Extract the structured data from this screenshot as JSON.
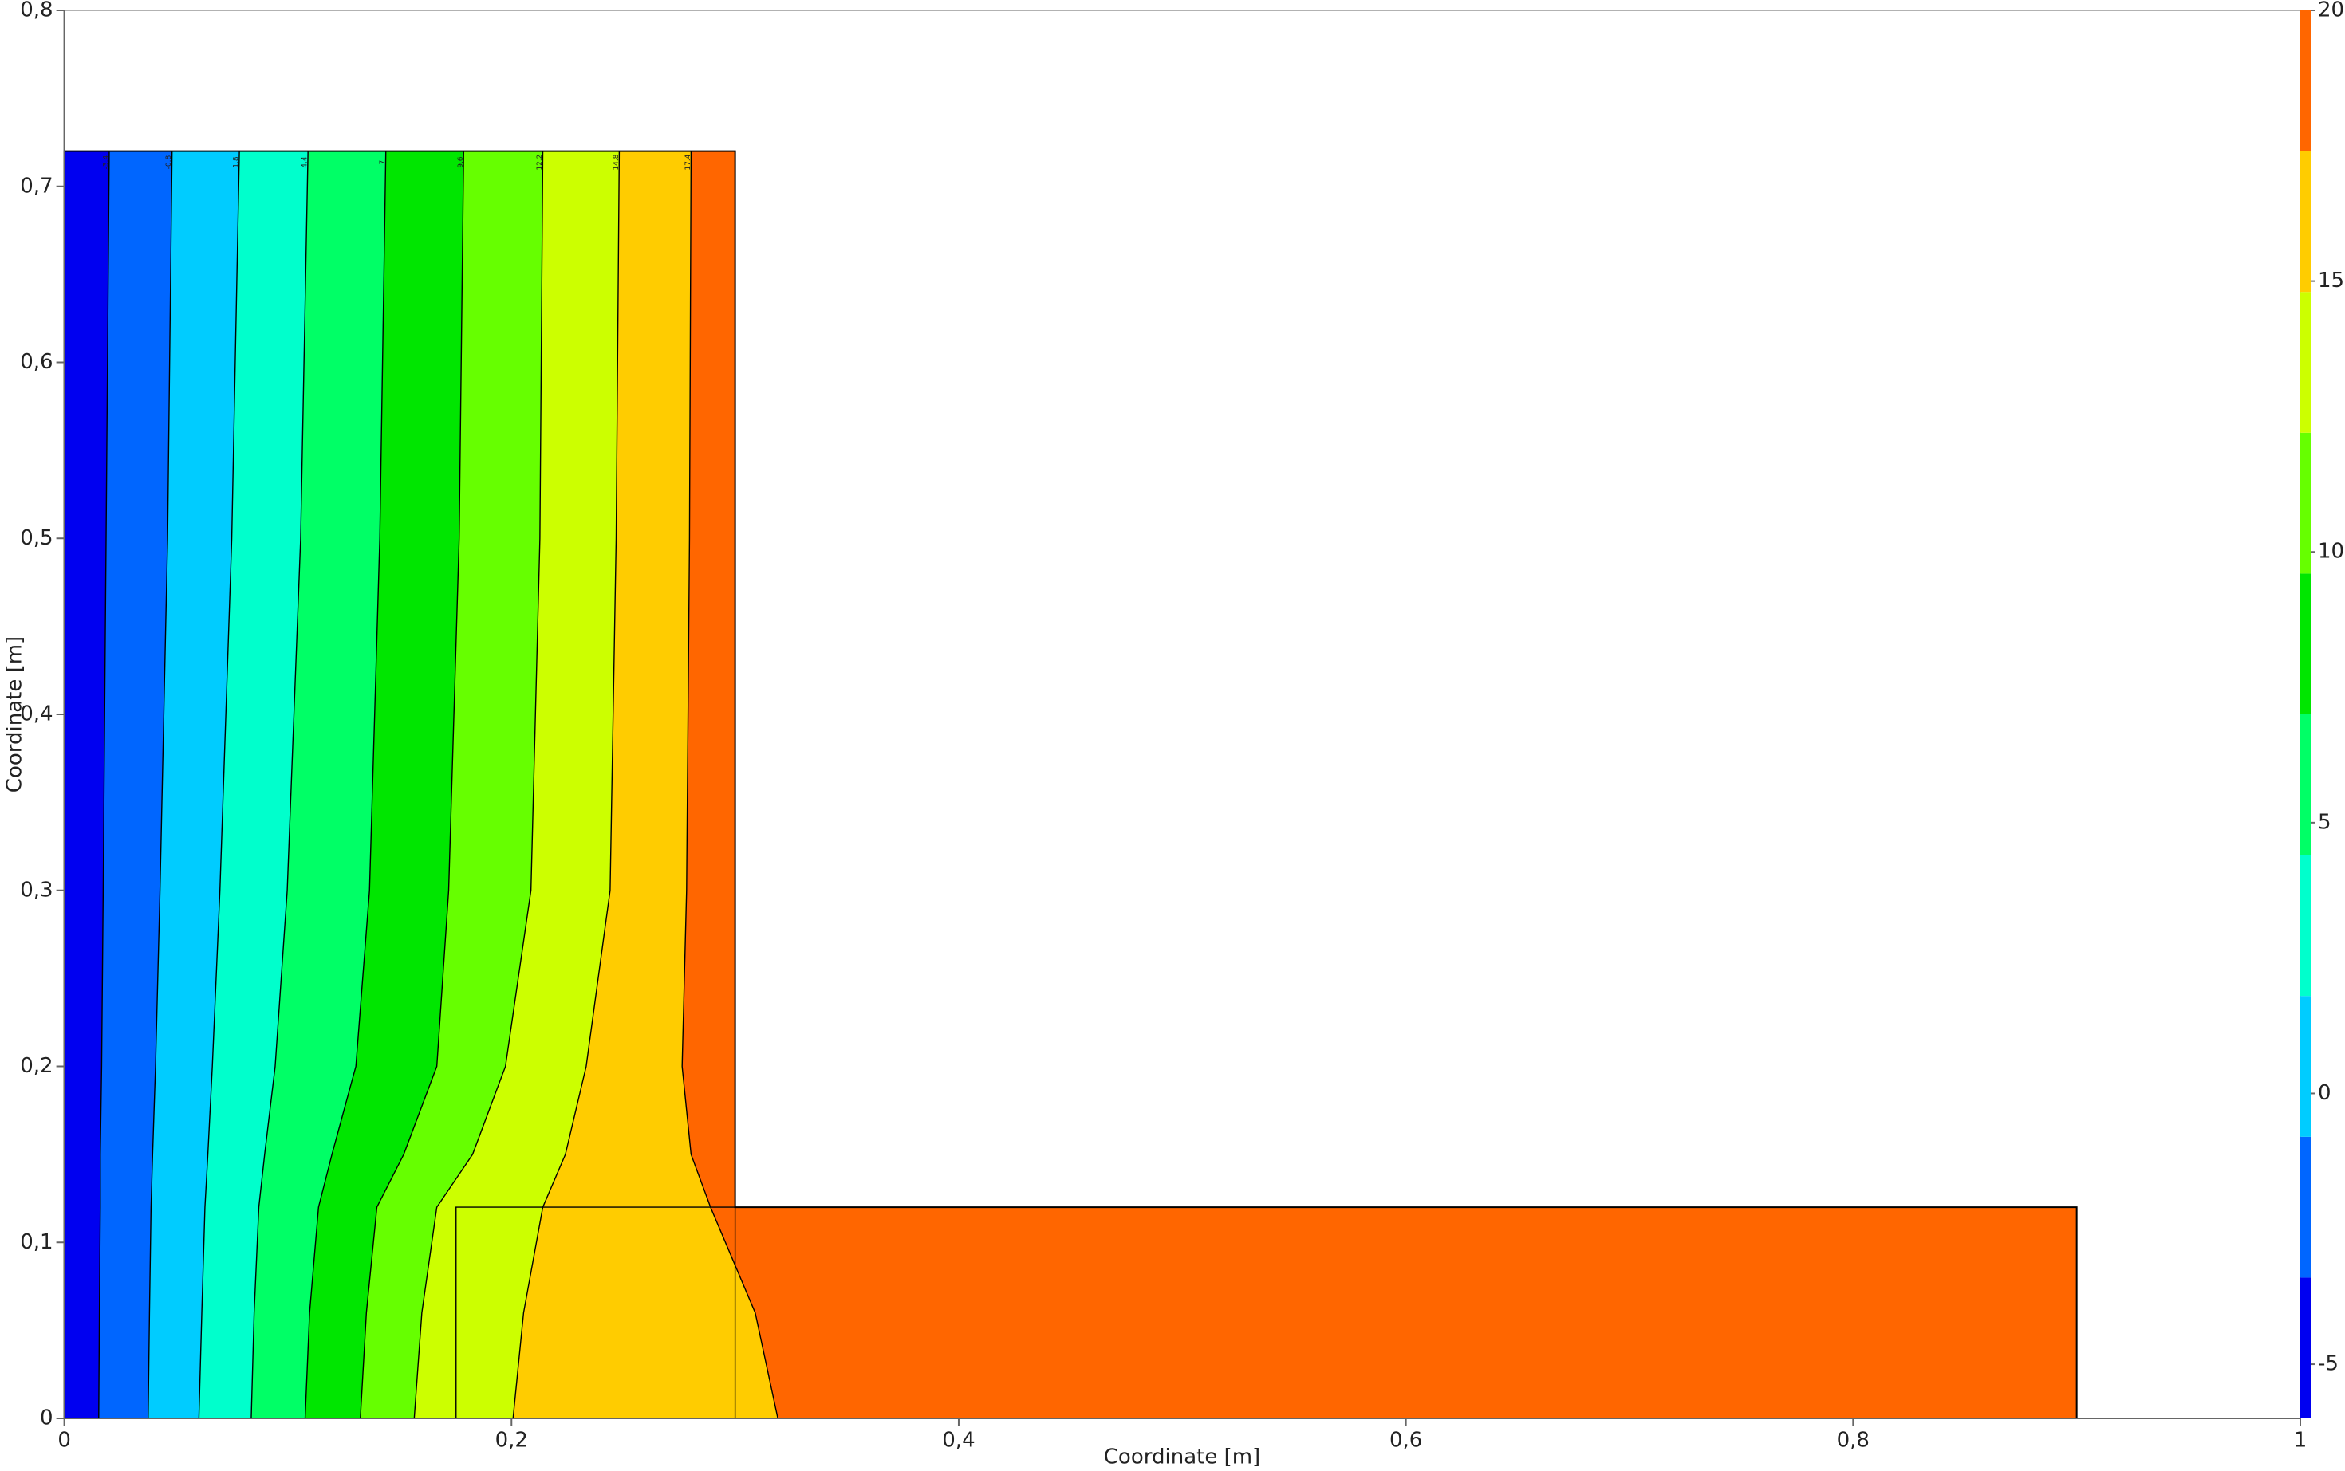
{
  "chart_data": {
    "type": "contour",
    "xlabel": "Coordinate [m]",
    "ylabel": "Coordinate [m]",
    "xlim": [
      0,
      1
    ],
    "ylim": [
      0,
      0.8
    ],
    "xticks": [
      0,
      {
        "value": 0.2,
        "label": "0,2"
      },
      {
        "value": 0.4,
        "label": "0,4"
      },
      {
        "value": 0.6,
        "label": "0,6"
      },
      {
        "value": 0.8,
        "label": "0,8"
      },
      1
    ],
    "yticks": [
      0,
      {
        "value": 0.1,
        "label": "0,1"
      },
      {
        "value": 0.2,
        "label": "0,2"
      },
      {
        "value": 0.3,
        "label": "0,3"
      },
      {
        "value": 0.4,
        "label": "0,4"
      },
      {
        "value": 0.5,
        "label": "0,5"
      },
      {
        "value": 0.6,
        "label": "0,6"
      },
      {
        "value": 0.7,
        "label": "0,7"
      },
      {
        "value": 0.8,
        "label": "0,8"
      }
    ],
    "domain": {
      "x": [
        0,
        0.3,
        0.3,
        0.9,
        0.9,
        0
      ],
      "y": [
        0.72,
        0.72,
        0.12,
        0.12,
        0,
        0
      ]
    },
    "inner_region": {
      "x": [
        0.1752,
        0.3,
        0.3,
        0.1752
      ],
      "y": [
        0.12,
        0.12,
        0,
        0
      ]
    },
    "colorbar": {
      "lim": [
        -6,
        20
      ],
      "ticks": [
        -5,
        0,
        5,
        10,
        15,
        20
      ],
      "colors": [
        "#0000f0",
        "#0066ff",
        "#00ccff",
        "#00ffcc",
        "#00ff66",
        "#00e600",
        "#66ff00",
        "#ccff00",
        "#ffcc00",
        "#ff6600"
      ]
    },
    "contours": [
      {
        "level": -3.4,
        "x": [
          0.0201,
          0.0187,
          0.0174,
          0.0167,
          0.0161,
          0.0161,
          0.0157,
          0.0154
        ],
        "y": [
          0.72,
          0.5,
          0.3,
          0.2,
          0.15,
          0.12,
          0.06,
          0
        ]
      },
      {
        "level": -0.8,
        "x": [
          0.0482,
          0.0462,
          0.0428,
          0.0408,
          0.0395,
          0.0388,
          0.0381,
          0.0375
        ],
        "y": [
          0.72,
          0.5,
          0.3,
          0.2,
          0.15,
          0.12,
          0.06,
          0
        ]
      },
      {
        "level": 1.8,
        "x": [
          0.0783,
          0.0749,
          0.0696,
          0.0662,
          0.0642,
          0.0629,
          0.0615,
          0.0602
        ],
        "y": [
          0.72,
          0.5,
          0.3,
          0.2,
          0.15,
          0.12,
          0.06,
          0
        ]
      },
      {
        "level": 4.4,
        "x": [
          0.109,
          0.1057,
          0.0997,
          0.0943,
          0.0896,
          0.087,
          0.0849,
          0.0836
        ],
        "y": [
          0.72,
          0.5,
          0.3,
          0.2,
          0.15,
          0.12,
          0.06,
          0
        ]
      },
      {
        "level": 7,
        "x": [
          0.1438,
          0.1411,
          0.1365,
          0.1304,
          0.1197,
          0.1137,
          0.1097,
          0.1077
        ],
        "y": [
          0.72,
          0.5,
          0.3,
          0.2,
          0.15,
          0.12,
          0.06,
          0
        ]
      },
      {
        "level": 9.6,
        "x": [
          0.1786,
          0.1766,
          0.1719,
          0.1666,
          0.1518,
          0.1398,
          0.1351,
          0.1324
        ],
        "y": [
          0.72,
          0.5,
          0.3,
          0.2,
          0.15,
          0.12,
          0.06,
          0
        ]
      },
      {
        "level": 12.2,
        "x": [
          0.214,
          0.2127,
          0.2087,
          0.1973,
          0.1826,
          0.1666,
          0.1599,
          0.1565
        ],
        "y": [
          0.72,
          0.5,
          0.3,
          0.2,
          0.15,
          0.12,
          0.06,
          0
        ]
      },
      {
        "level": 14.8,
        "x": [
          0.2482,
          0.2468,
          0.2441,
          0.2334,
          0.2241,
          0.214,
          0.2054,
          0.2007
        ],
        "y": [
          0.72,
          0.5,
          0.3,
          0.2,
          0.15,
          0.12,
          0.06,
          0
        ]
      },
      {
        "level": 17.4,
        "x": [
          0.2803,
          0.2796,
          0.2783,
          0.2763,
          0.2803,
          0.289,
          0.309,
          0.3191
        ],
        "y": [
          0.72,
          0.5,
          0.3,
          0.2,
          0.15,
          0.12,
          0.06,
          0
        ]
      }
    ]
  }
}
